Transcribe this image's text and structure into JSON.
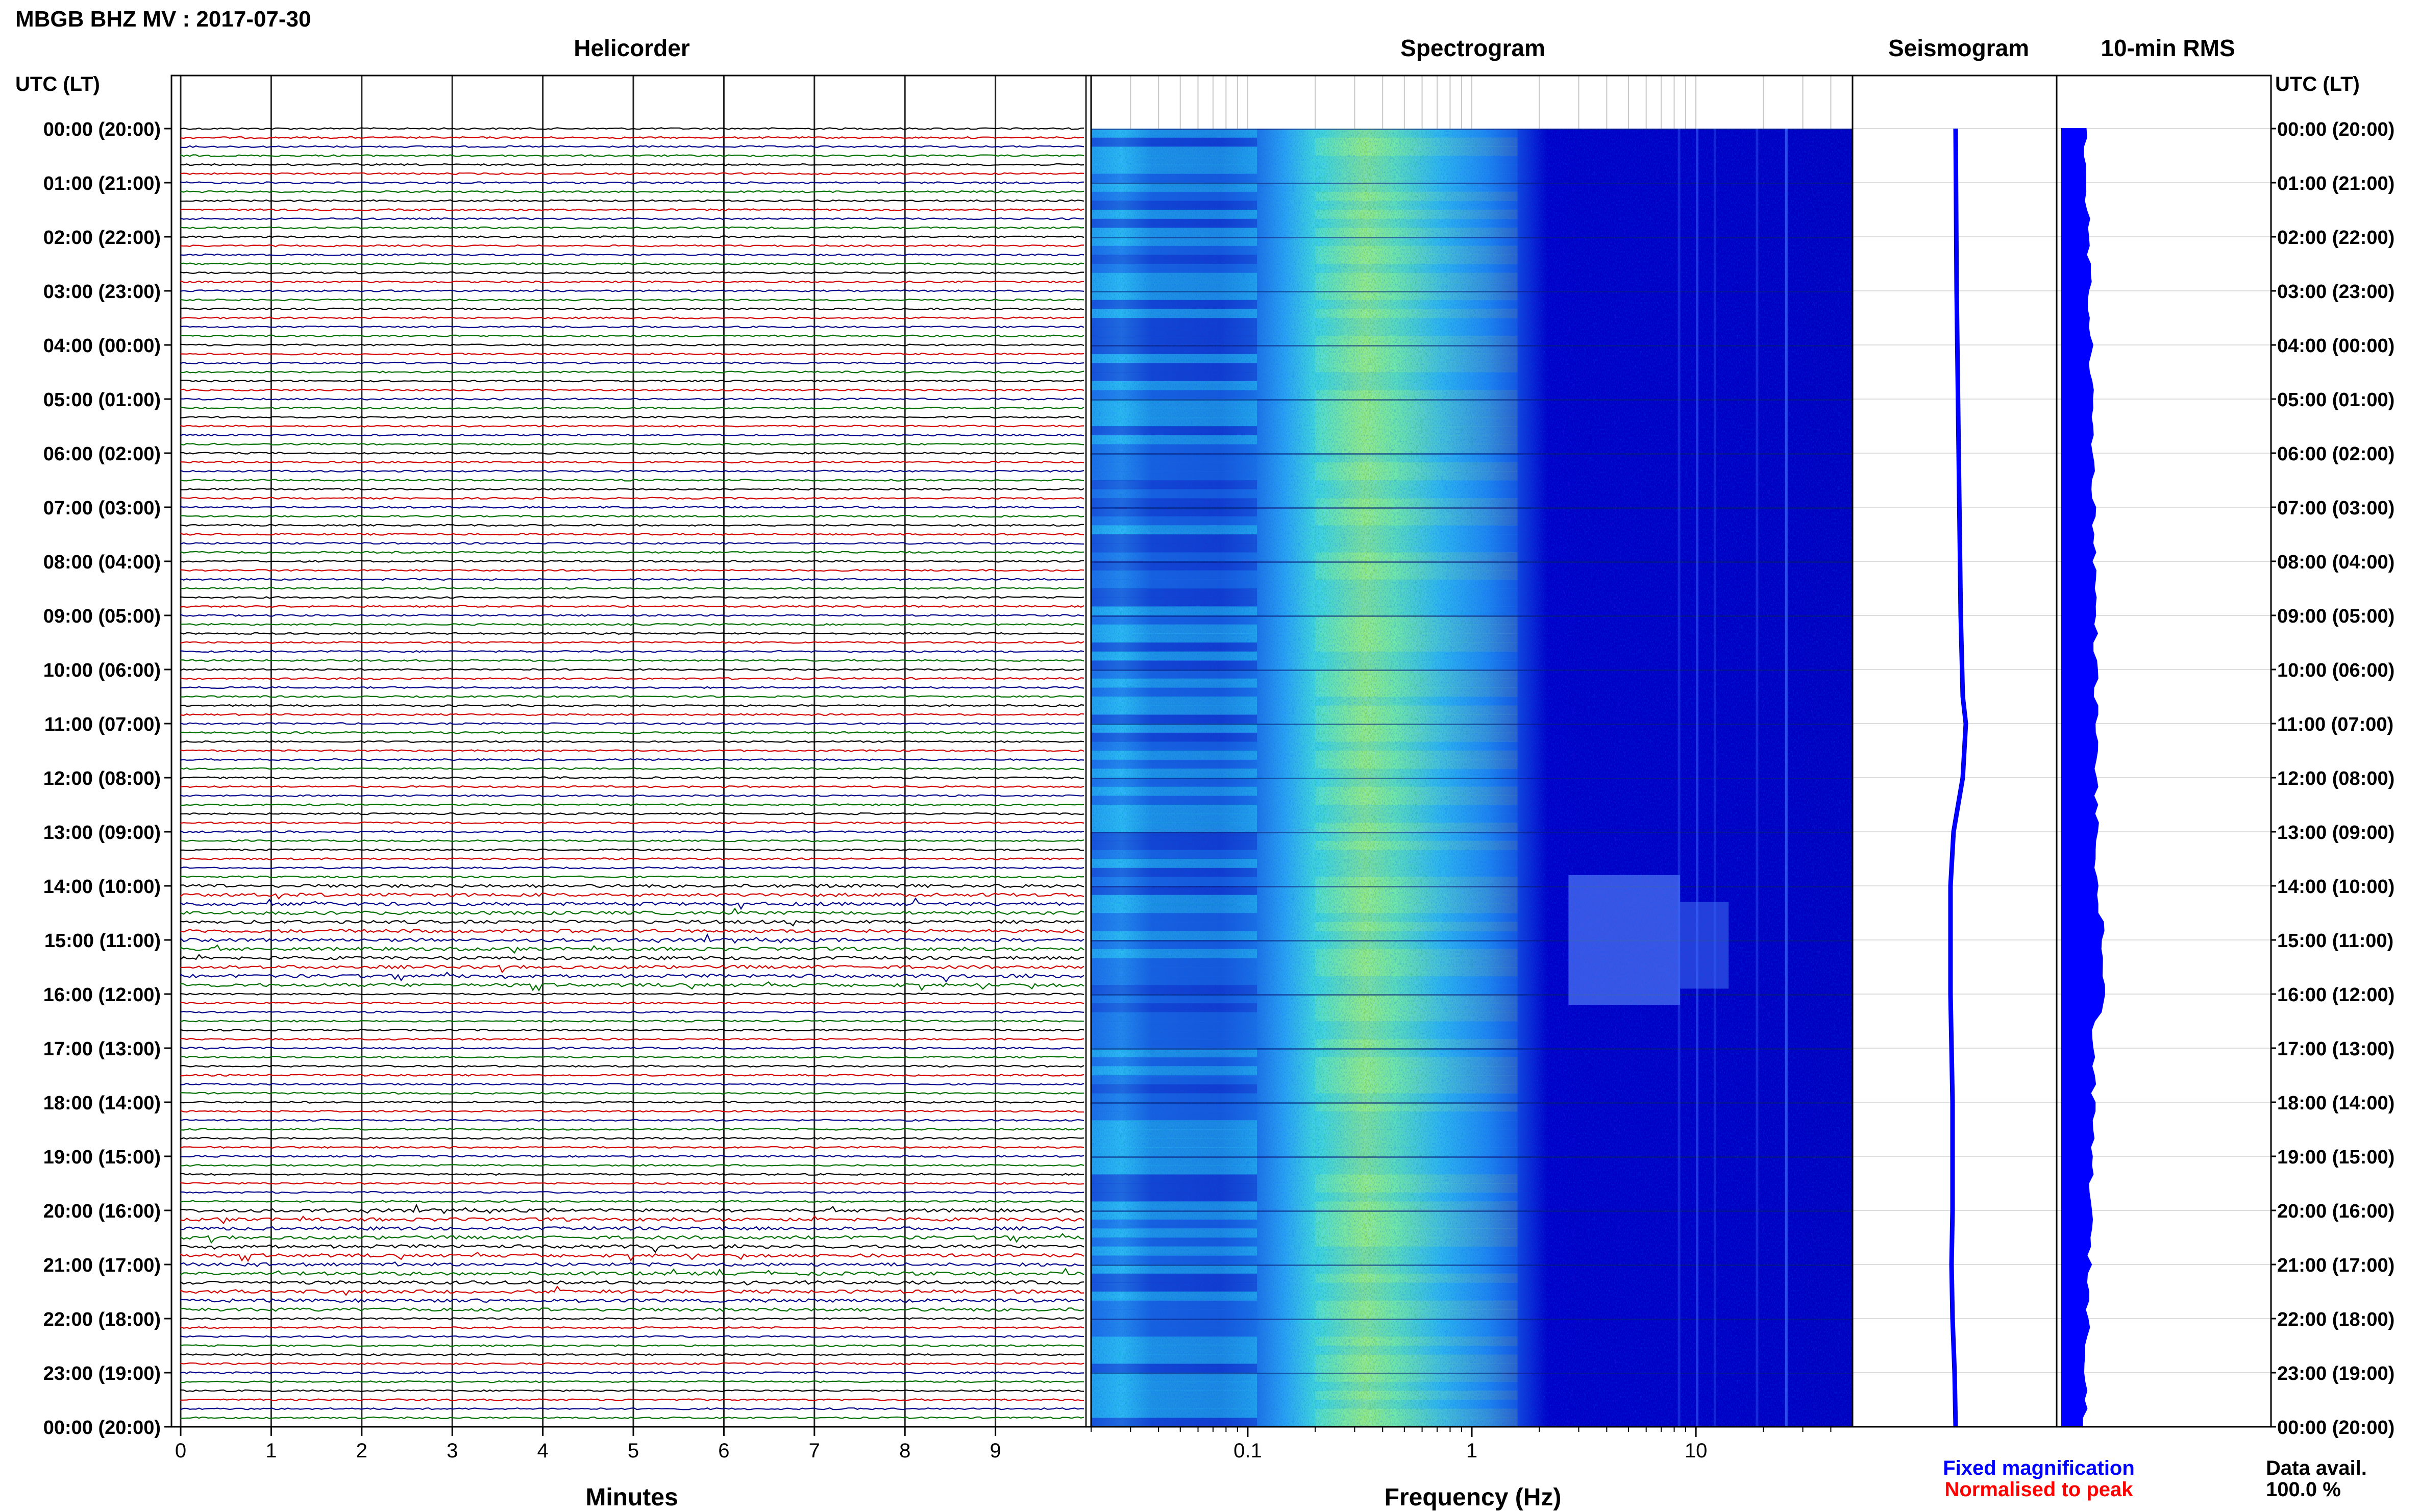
{
  "header": {
    "station_title": "MBGB BHZ MV : 2017-07-30"
  },
  "time_axis": {
    "left_label": "UTC (LT)",
    "right_label": "UTC (LT)",
    "ticks": [
      "00:00 (20:00)",
      "01:00 (21:00)",
      "02:00 (22:00)",
      "03:00 (23:00)",
      "04:00 (00:00)",
      "05:00 (01:00)",
      "06:00 (02:00)",
      "07:00 (03:00)",
      "08:00 (04:00)",
      "09:00 (05:00)",
      "10:00 (06:00)",
      "11:00 (07:00)",
      "12:00 (08:00)",
      "13:00 (09:00)",
      "14:00 (10:00)",
      "15:00 (11:00)",
      "16:00 (12:00)",
      "17:00 (13:00)",
      "18:00 (14:00)",
      "19:00 (15:00)",
      "20:00 (16:00)",
      "21:00 (17:00)",
      "22:00 (18:00)",
      "23:00 (19:00)",
      "00:00 (20:00)"
    ]
  },
  "chart_data": [
    {
      "type": "line",
      "panel": "helicorder",
      "title": "Helicorder",
      "xlabel": "Minutes",
      "x_ticks": [
        "0",
        "1",
        "2",
        "3",
        "4",
        "5",
        "6",
        "7",
        "8",
        "9"
      ],
      "xlim": [
        0,
        10
      ],
      "rows_per_hour": 6,
      "hours": 24,
      "trace_colors": [
        "#000000",
        "#d40000",
        "#00008b",
        "#007000"
      ],
      "noisy_hours": [
        14,
        15,
        20,
        21
      ]
    },
    {
      "type": "heatmap",
      "panel": "spectrogram",
      "title": "Spectrogram",
      "xlabel": "Frequency (Hz)",
      "x_scale": "log",
      "xlim": [
        0.02,
        50
      ],
      "x_ticks": [
        {
          "value": 0.1,
          "label": "0.1"
        },
        {
          "value": 1,
          "label": "1"
        },
        {
          "value": 10,
          "label": "10"
        }
      ],
      "peak_frequency_hz": 0.4,
      "activity_hours": [
        13.8,
        16.2
      ],
      "colors": {
        "low": "#0000c8",
        "mid": "#1f8fff",
        "high": "#36e0d8",
        "peak": "#b8f05a"
      }
    },
    {
      "type": "line",
      "panel": "seismogram",
      "title": "Seismogram",
      "ylim": [
        0,
        24
      ],
      "color": "#0000ff"
    },
    {
      "type": "area",
      "panel": "rms",
      "title": "10-min RMS",
      "ylim": [
        0,
        24
      ],
      "color": "#0000ff"
    }
  ],
  "legend": {
    "fixed_label": "Fixed magnification",
    "fixed_color": "#0000ff",
    "normalised_label": "Normalised to peak",
    "normalised_color": "#ff0000"
  },
  "availability": {
    "label": "Data avail.",
    "value": "100.0 %"
  }
}
